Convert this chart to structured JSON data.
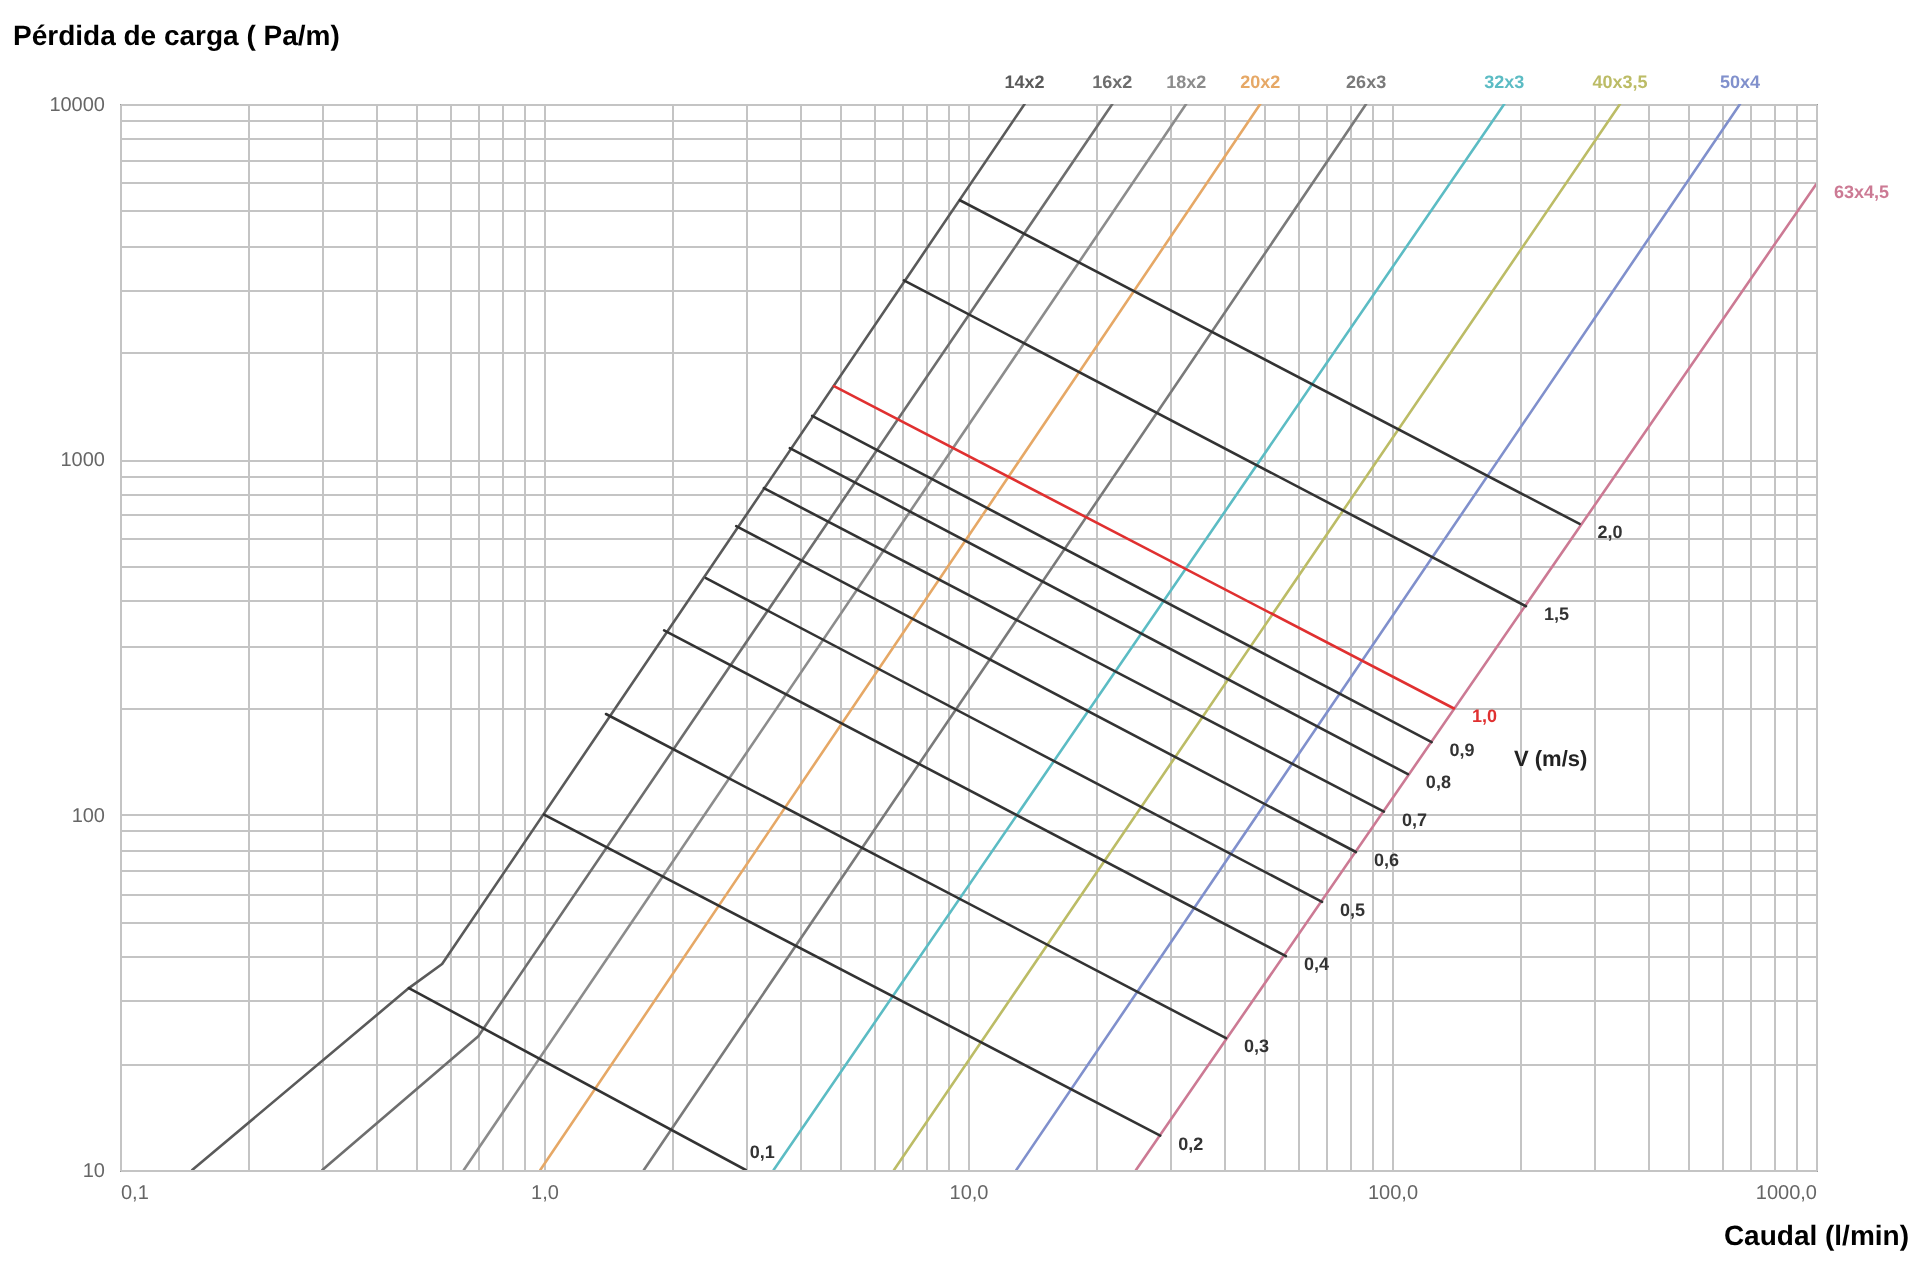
{
  "chart_data": {
    "type": "line",
    "xlabel": "Caudal (l/min)",
    "ylabel": "Pérdida de carga ( Pa/m)",
    "log": "xy",
    "grid": true,
    "xlim": [
      0.1,
      1000
    ],
    "ylim": [
      10,
      10000
    ],
    "xticks": [
      {
        "value": 0.1,
        "label": "0,1"
      },
      {
        "value": 0.2,
        "label": null
      },
      {
        "value": 0.3,
        "label": null
      },
      {
        "value": 0.4,
        "label": null
      },
      {
        "value": 0.5,
        "label": null
      },
      {
        "value": 0.6,
        "label": null
      },
      {
        "value": 0.7,
        "label": null
      },
      {
        "value": 0.8,
        "label": null
      },
      {
        "value": 0.9,
        "label": null
      },
      {
        "value": 1,
        "label": "1,0"
      },
      {
        "value": 2,
        "label": null
      },
      {
        "value": 3,
        "label": null
      },
      {
        "value": 4,
        "label": null
      },
      {
        "value": 5,
        "label": null
      },
      {
        "value": 6,
        "label": null
      },
      {
        "value": 7,
        "label": null
      },
      {
        "value": 8,
        "label": null
      },
      {
        "value": 9,
        "label": null
      },
      {
        "value": 10,
        "label": "10,0"
      },
      {
        "value": 20,
        "label": null
      },
      {
        "value": 30,
        "label": null
      },
      {
        "value": 40,
        "label": null
      },
      {
        "value": 50,
        "label": null
      },
      {
        "value": 60,
        "label": null
      },
      {
        "value": 70,
        "label": null
      },
      {
        "value": 80,
        "label": null
      },
      {
        "value": 90,
        "label": null
      },
      {
        "value": 100,
        "label": "100,0"
      },
      {
        "value": 200,
        "label": null
      },
      {
        "value": 300,
        "label": null
      },
      {
        "value": 400,
        "label": null
      },
      {
        "value": 500,
        "label": null
      },
      {
        "value": 600,
        "label": null
      },
      {
        "value": 700,
        "label": null
      },
      {
        "value": 800,
        "label": null
      },
      {
        "value": 900,
        "label": null
      },
      {
        "value": 1000,
        "label": "1000,0"
      }
    ],
    "yticks": [
      10,
      {
        "value": 20,
        "label": null
      },
      {
        "value": 30,
        "label": null
      },
      {
        "value": 40,
        "label": null
      },
      {
        "value": 50,
        "label": null
      },
      {
        "value": 60,
        "label": null
      },
      {
        "value": 70,
        "label": null
      },
      {
        "value": 80,
        "label": null
      },
      {
        "value": 90,
        "label": null
      },
      100,
      {
        "value": 200,
        "label": null
      },
      {
        "value": 300,
        "label": null
      },
      {
        "value": 400,
        "label": null
      },
      {
        "value": 500,
        "label": null
      },
      {
        "value": 600,
        "label": null
      },
      {
        "value": 700,
        "label": null
      },
      {
        "value": 800,
        "label": null
      },
      {
        "value": 900,
        "label": null
      },
      1000,
      {
        "value": 2000,
        "label": null
      },
      {
        "value": 3000,
        "label": null
      },
      {
        "value": 4000,
        "label": null
      },
      {
        "value": 5000,
        "label": null
      },
      {
        "value": 6000,
        "label": null
      },
      {
        "value": 7000,
        "label": null
      },
      {
        "value": 8000,
        "label": null
      },
      {
        "value": 9000,
        "label": null
      },
      10000
    ],
    "annotations": [
      "V (m/s)"
    ],
    "series": [
      {
        "name": "14x2",
        "color": "#5a5a5a",
        "x": [
          0.148,
          0.48,
          0.575,
          13.6
        ],
        "values": [
          10,
          32.5,
          38,
          10000
        ]
      },
      {
        "name": "16x2",
        "color": "#6e6e6e",
        "x": [
          0.3,
          0.7,
          21.9
        ],
        "values": [
          10,
          23.8,
          10000
        ]
      },
      {
        "name": "18x2",
        "color": "#8c8c8c",
        "x": [
          0.647,
          32.7
        ],
        "values": [
          10,
          10000
        ]
      },
      {
        "name": "20x2",
        "color": "#e6a866",
        "x": [
          0.98,
          48.9
        ],
        "values": [
          10,
          10000
        ]
      },
      {
        "name": "26x3",
        "color": "#7a7a7a",
        "x": [
          1.72,
          86.9
        ],
        "values": [
          10,
          10000
        ]
      },
      {
        "name": "32x3",
        "color": "#5cbcc4",
        "x": [
          3.48,
          184
        ],
        "values": [
          10,
          10000
        ]
      },
      {
        "name": "40x3,5",
        "color": "#bcbc66",
        "x": [
          6.69,
          345
        ],
        "values": [
          10,
          10000
        ]
      },
      {
        "name": "50x4",
        "color": "#8090cc",
        "x": [
          13,
          662
        ],
        "values": [
          10,
          10000
        ]
      },
      {
        "name": "63x4,5",
        "color": "#cc7a94",
        "x": [
          24.9,
          1000
        ],
        "values": [
          10,
          5940
        ]
      },
      {
        "name": "0,1",
        "color": "#333333",
        "x": [
          0.48,
          2.99
        ],
        "values": [
          32.5,
          10
        ]
      },
      {
        "name": "0,2",
        "color": "#333333",
        "x": [
          1,
          28.4
        ],
        "values": [
          100,
          12.5
        ]
      },
      {
        "name": "0,3",
        "color": "#333333",
        "x": [
          1.4,
          40.6
        ],
        "values": [
          192,
          23.5
        ]
      },
      {
        "name": "0,4",
        "color": "#333333",
        "x": [
          1.92,
          56.2
        ],
        "values": [
          330,
          40
        ]
      },
      {
        "name": "0,5",
        "color": "#333333",
        "x": [
          2.41,
          68.4
        ],
        "values": [
          463,
          56.8
        ]
      },
      {
        "name": "0,6",
        "color": "#333333",
        "x": [
          2.84,
          82.2
        ],
        "values": [
          649,
          78.5
        ]
      },
      {
        "name": "0,7",
        "color": "#333333",
        "x": [
          3.3,
          95.7
        ],
        "values": [
          830,
          102
        ]
      },
      {
        "name": "0,8",
        "color": "#333333",
        "x": [
          3.8,
          109
        ],
        "values": [
          1075,
          130
        ]
      },
      {
        "name": "0,9",
        "color": "#333333",
        "x": [
          4.29,
          124
        ],
        "values": [
          1325,
          160
        ]
      },
      {
        "name": "1,0",
        "color": "#e03030",
        "x": [
          4.83,
          140
        ],
        "values": [
          1607,
          199
        ]
      },
      {
        "name": "1,5",
        "color": "#333333",
        "x": [
          7.06,
          207
        ],
        "values": [
          3190,
          386
        ]
      },
      {
        "name": "2,0",
        "color": "#333333",
        "x": [
          9.57,
          277
        ],
        "values": [
          5360,
          658
        ]
      }
    ]
  }
}
